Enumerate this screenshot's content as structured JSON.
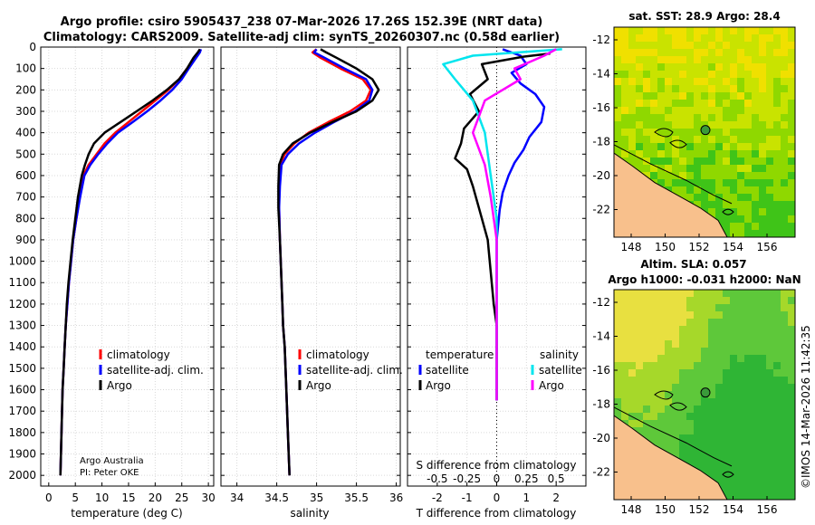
{
  "title": {
    "line1": "Argo profile: csiro 5905437_238 07-Mar-2026 17.26S 152.39E (NRT data)",
    "line2": "Climatology: CARS2009. Satellite-adj clim: synTS_20260307.nc (0.58d earlier)"
  },
  "colors": {
    "climatology": "#ff0000",
    "satellite_adj": "#0000ff",
    "argo": "#000000",
    "sal_satellite": "#00e5ee",
    "sal_argo": "#ff00ff",
    "land": "#f8c08c"
  },
  "depth_axis": {
    "ylim": [
      0,
      2050
    ],
    "ticks": [
      0,
      100,
      200,
      300,
      400,
      500,
      600,
      700,
      800,
      900,
      1000,
      1100,
      1200,
      1300,
      1400,
      1500,
      1600,
      1700,
      1800,
      1900,
      2000
    ]
  },
  "chart_data": [
    {
      "type": "line",
      "id": "temperature",
      "xlabel": "temperature (deg C)",
      "xlim": [
        -1.5,
        31
      ],
      "xticks": [
        0,
        5,
        10,
        15,
        20,
        25,
        30
      ],
      "xtick_labels": [
        "0",
        "5",
        "10",
        "15",
        "20",
        "25",
        "30"
      ],
      "legend": [
        "climatology",
        "satellite-adj. clim.",
        "Argo"
      ],
      "credit": [
        "Argo Australia",
        "PI: Peter OKE"
      ],
      "series": [
        {
          "name": "climatology",
          "color": "#ff0000",
          "x": [
            28.5,
            28.2,
            27.5,
            26,
            24.5,
            22.5,
            20,
            17.5,
            15,
            12.5,
            10.5,
            9,
            7.5,
            6.5,
            5.8,
            5.2,
            4.6,
            4.2,
            3.8,
            3.5,
            3.2,
            3,
            2.8,
            2.6,
            2.4,
            2.2
          ],
          "y": [
            10,
            25,
            50,
            100,
            150,
            200,
            250,
            300,
            350,
            400,
            450,
            500,
            550,
            600,
            700,
            800,
            900,
            1000,
            1100,
            1200,
            1300,
            1400,
            1500,
            1600,
            1800,
            2000
          ]
        },
        {
          "name": "satellite-adj. clim.",
          "color": "#0000ff",
          "x": [
            28.6,
            28.4,
            27.7,
            26.3,
            25,
            23.2,
            21,
            18.5,
            15.8,
            13,
            11,
            9.3,
            7.8,
            6.7,
            5.9,
            5.2,
            4.6,
            4.2,
            3.8,
            3.5,
            3.2,
            3,
            2.8,
            2.6,
            2.4,
            2.2
          ],
          "y": [
            10,
            25,
            50,
            100,
            150,
            200,
            250,
            300,
            350,
            400,
            450,
            500,
            550,
            600,
            700,
            800,
            900,
            1000,
            1100,
            1200,
            1300,
            1400,
            1500,
            1600,
            1800,
            2000
          ]
        },
        {
          "name": "Argo",
          "color": "#000000",
          "x": [
            28.4,
            28,
            27.2,
            26,
            24.5,
            22.2,
            19.5,
            16.5,
            13.5,
            10.5,
            8.5,
            7.5,
            6.8,
            6.2,
            5.5,
            5,
            4.5,
            4.1,
            3.7,
            3.4,
            3.2,
            3,
            2.8,
            2.6,
            2.4,
            2.2
          ],
          "y": [
            10,
            25,
            50,
            100,
            150,
            200,
            250,
            300,
            350,
            400,
            450,
            500,
            550,
            600,
            700,
            800,
            900,
            1000,
            1100,
            1200,
            1300,
            1400,
            1500,
            1600,
            1800,
            2000
          ]
        }
      ]
    },
    {
      "type": "line",
      "id": "salinity",
      "xlabel": "salinity",
      "xlim": [
        33.8,
        36.05
      ],
      "xticks": [
        34,
        34.5,
        35,
        35.5,
        36
      ],
      "xtick_labels": [
        "34",
        "34.5",
        "35",
        "35.5",
        "36"
      ],
      "legend": [
        "climatology",
        "satellite-adj. clim.",
        "Argo"
      ],
      "series": [
        {
          "name": "climatology",
          "color": "#ff0000",
          "x": [
            35.0,
            34.95,
            35.05,
            35.3,
            35.58,
            35.68,
            35.62,
            35.42,
            35.15,
            34.9,
            34.72,
            34.6,
            34.54,
            34.53,
            34.53,
            34.54,
            34.55,
            34.56,
            34.57,
            34.58,
            34.6,
            34.61,
            34.62,
            34.64,
            34.66
          ],
          "y": [
            10,
            25,
            50,
            100,
            150,
            200,
            250,
            300,
            350,
            400,
            450,
            500,
            550,
            650,
            750,
            900,
            1000,
            1100,
            1200,
            1300,
            1400,
            1500,
            1600,
            1800,
            2000
          ]
        },
        {
          "name": "satellite-adj. clim.",
          "color": "#0000ff",
          "x": [
            35.0,
            34.97,
            35.1,
            35.35,
            35.62,
            35.7,
            35.66,
            35.48,
            35.22,
            34.98,
            34.78,
            34.64,
            34.56,
            34.54,
            34.53,
            34.54,
            34.55,
            34.56,
            34.57,
            34.58,
            34.6,
            34.61,
            34.62,
            34.64,
            34.66
          ],
          "y": [
            10,
            25,
            50,
            100,
            150,
            200,
            250,
            300,
            350,
            400,
            450,
            500,
            550,
            650,
            750,
            900,
            1000,
            1100,
            1200,
            1300,
            1400,
            1500,
            1600,
            1800,
            2000
          ]
        },
        {
          "name": "Argo",
          "color": "#000000",
          "x": [
            35.05,
            35.12,
            35.25,
            35.5,
            35.7,
            35.78,
            35.7,
            35.5,
            35.2,
            34.92,
            34.7,
            34.58,
            34.53,
            34.52,
            34.52,
            34.54,
            34.55,
            34.56,
            34.57,
            34.58,
            34.6,
            34.61,
            34.62,
            34.64,
            34.66
          ],
          "y": [
            10,
            25,
            50,
            100,
            150,
            200,
            250,
            300,
            350,
            400,
            450,
            500,
            550,
            650,
            750,
            900,
            1000,
            1100,
            1200,
            1300,
            1400,
            1500,
            1600,
            1800,
            2000
          ]
        }
      ]
    },
    {
      "type": "line",
      "id": "difference",
      "xlabel": "T difference from climatology",
      "xlabel_top": "S difference from climatology",
      "xlim": [
        -3,
        3
      ],
      "xticks": [
        -2,
        -1,
        0,
        1,
        2
      ],
      "xtick_labels": [
        "-2",
        "-1",
        "0",
        "1",
        "2"
      ],
      "s_ticks": [
        -0.5,
        -0.25,
        0,
        0.25,
        0.5
      ],
      "s_tick_labels": [
        "-0.5",
        "-0.25",
        "0",
        "0.25",
        "0.5"
      ],
      "legend_left_title": "temperature",
      "legend_right_title": "salinity",
      "legend": [
        "satellite",
        "Argo",
        "satellite",
        "Argo"
      ],
      "series": [
        {
          "name": "T satellite",
          "color": "#0000ff",
          "x": [
            0.2,
            0.8,
            1.0,
            0.5,
            0.8,
            1.3,
            1.6,
            1.5,
            1.1,
            0.9,
            0.6,
            0.4,
            0.2,
            0.1,
            0,
            0,
            0,
            0,
            0,
            0
          ],
          "y": [
            10,
            40,
            80,
            120,
            170,
            220,
            280,
            350,
            420,
            480,
            540,
            600,
            680,
            760,
            900,
            1100,
            1300,
            1500,
            1600,
            1650
          ]
        },
        {
          "name": "T Argo",
          "color": "#000000",
          "x": [
            1.8,
            0.9,
            -0.5,
            -0.3,
            -0.9,
            -0.6,
            -1.1,
            -1.2,
            -1.4,
            -1.0,
            -0.8,
            -0.6,
            -0.3,
            -0.2,
            -0.1,
            0,
            0,
            0
          ],
          "y": [
            30,
            45,
            80,
            150,
            220,
            300,
            380,
            450,
            520,
            570,
            650,
            750,
            900,
            1050,
            1200,
            1300,
            1500,
            1650
          ]
        },
        {
          "name": "S satellite",
          "color": "#00e5ee",
          "x": [
            0.55,
            -0.2,
            -0.45,
            -0.35,
            -0.2,
            -0.1,
            -0.05,
            0,
            0,
            0,
            0
          ],
          "y": [
            10,
            40,
            80,
            150,
            250,
            400,
            600,
            800,
            1100,
            1400,
            1650
          ]
        },
        {
          "name": "S Argo",
          "color": "#ff00ff",
          "x": [
            0.5,
            0.4,
            0.15,
            0.2,
            -0.1,
            -0.2,
            -0.1,
            -0.05,
            0,
            0,
            0
          ],
          "y": [
            10,
            40,
            100,
            150,
            250,
            400,
            550,
            700,
            900,
            1200,
            1650
          ]
        }
      ]
    }
  ],
  "maps": {
    "top": {
      "title": "sat. SST: 28.9 Argo: 28.4",
      "yticks": [
        "-12",
        "-14",
        "-16",
        "-18",
        "-20",
        "-22"
      ],
      "xticks": [
        "148",
        "150",
        "152",
        "154",
        "156"
      ]
    },
    "bottom": {
      "title_line1": "Altim. SLA: 0.057",
      "title_line2": "Argo h1000: -0.031 h2000: NaN",
      "yticks": [
        "-12",
        "-14",
        "-16",
        "-18",
        "-20",
        "-22"
      ],
      "xticks": [
        "148",
        "150",
        "152",
        "154",
        "156"
      ]
    }
  },
  "stamp": "©IMOS 14-Mar-2026 11:42:35"
}
